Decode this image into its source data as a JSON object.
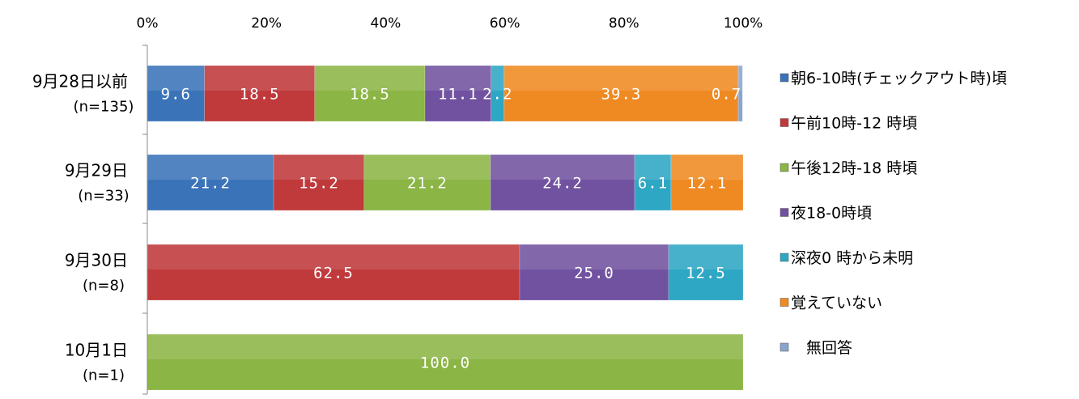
{
  "chart_data": {
    "type": "bar",
    "orientation": "horizontal",
    "stacked": "percent",
    "categories": [
      {
        "label": "9月28日以前",
        "n": "(n=135)"
      },
      {
        "label": "9月29日",
        "n": "(n=33)"
      },
      {
        "label": "9月30日",
        "n": "(n=8)"
      },
      {
        "label": "10月1日",
        "n": "(n=1)"
      }
    ],
    "series": [
      {
        "name": "朝6-10時(チェックアウト時)頃",
        "color": "#3a73b8",
        "values": [
          9.6,
          21.2,
          0,
          0
        ]
      },
      {
        "name": "午前10時-12 時頃",
        "color": "#c0393b",
        "values": [
          18.5,
          15.2,
          62.5,
          0
        ]
      },
      {
        "name": "午後12時-18 時頃",
        "color": "#8bb545",
        "values": [
          18.5,
          21.2,
          0,
          100.0
        ]
      },
      {
        "name": "夜18-0時頃",
        "color": "#7152a0",
        "values": [
          11.1,
          24.2,
          25.0,
          0
        ]
      },
      {
        "name": "深夜0 時から未明",
        "color": "#2ea7c4",
        "values": [
          2.2,
          6.1,
          12.5,
          0
        ]
      },
      {
        "name": "覚えていない",
        "color": "#ef8a23",
        "values": [
          39.3,
          12.1,
          0,
          0
        ]
      },
      {
        "name": "無回答",
        "color": "#8aa5cc",
        "values": [
          0.7,
          0,
          0,
          0
        ]
      }
    ],
    "data_labels": [
      [
        "9.6",
        "18.5",
        "18.5",
        "11.1",
        "2.2",
        "39.3",
        "0.7"
      ],
      [
        "21.2",
        "15.2",
        "21.2",
        "24.2",
        "6.1",
        "12.1",
        ""
      ],
      [
        "",
        "62.5",
        "",
        "25.0",
        "12.5",
        "",
        ""
      ],
      [
        "",
        "",
        "100.0",
        "",
        "",
        "",
        ""
      ]
    ],
    "xlim": [
      0,
      100
    ],
    "xticks": [
      "0%",
      "20%",
      "40%",
      "60%",
      "80%",
      "100%"
    ],
    "xaxis_position": "top",
    "legend_position": "right",
    "grid": false
  }
}
